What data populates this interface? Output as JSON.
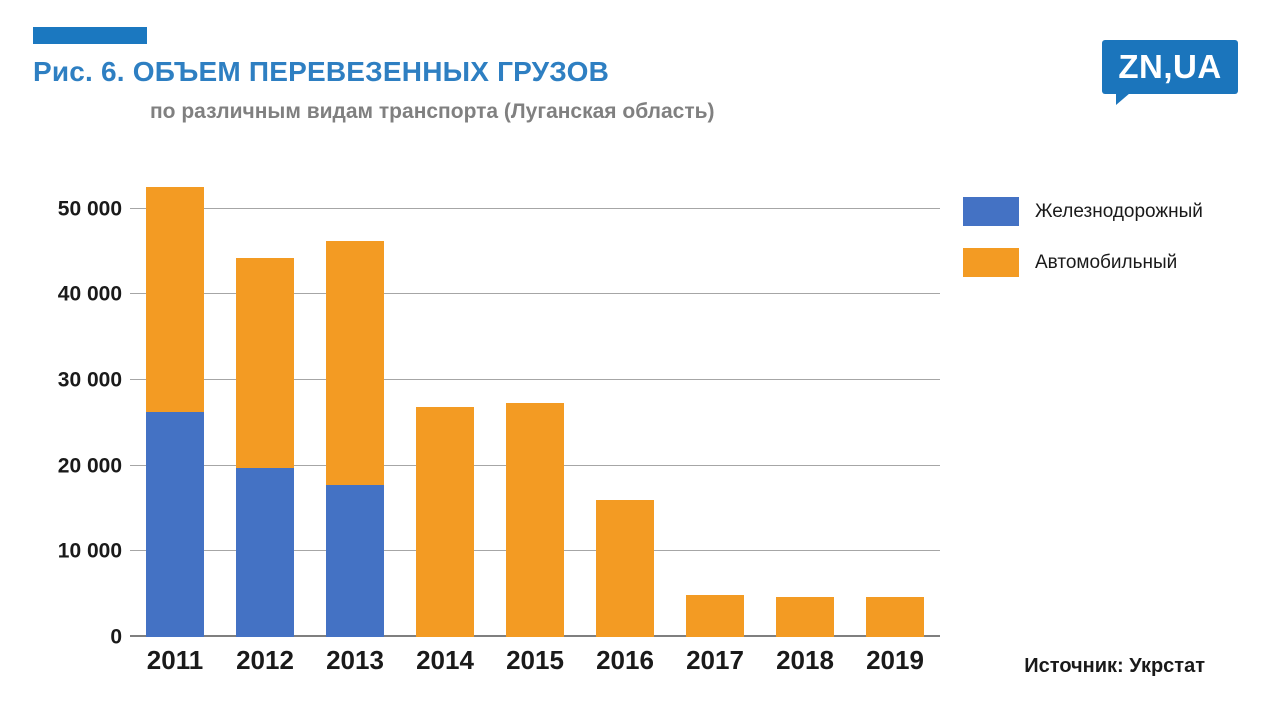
{
  "header": {
    "figure_title": "Рис. 6. ОБЪЕМ ПЕРЕВЕЗЕННЫХ ГРУЗОВ",
    "subtitle": "по различным видам транспорта (Луганская область)",
    "logo_text": "ZN,UA"
  },
  "source": "Источник: Укрстат",
  "colors": {
    "accent_blue": "#1b78c0",
    "title_blue": "#2e7fc2",
    "subtitle_gray": "#808080",
    "logo_blue": "#1b75bc",
    "rail_blue": "#4472c4",
    "road_orange": "#f39b23",
    "gridline_gray": "#a6a6a6"
  },
  "chart_data": {
    "type": "bar",
    "stacked": true,
    "title": "Рис. 6. ОБЪЕМ ПЕРЕВЕЗЕННЫХ ГРУЗОВ",
    "subtitle": "по различным видам транспорта (Луганская область)",
    "categories": [
      "2011",
      "2012",
      "2013",
      "2014",
      "2015",
      "2016",
      "2017",
      "2018",
      "2019"
    ],
    "series": [
      {
        "name": "Железнодорожный",
        "color": "#4472c4",
        "values": [
          26300,
          19700,
          17700,
          0,
          0,
          0,
          0,
          0,
          0
        ]
      },
      {
        "name": "Автомобильный",
        "color": "#f39b23",
        "values": [
          26200,
          24600,
          28600,
          26900,
          27300,
          16000,
          4900,
          4700,
          4700
        ]
      }
    ],
    "xlabel": "",
    "ylabel": "",
    "ylim": [
      0,
      55000
    ],
    "yticks": [
      0,
      10000,
      20000,
      30000,
      40000,
      50000
    ],
    "ytick_labels": [
      "0",
      "10 000",
      "20 000",
      "30 000",
      "40 000",
      "50 000"
    ],
    "grid": true,
    "legend_position": "right-top",
    "source": "Источник: Укрстат"
  }
}
